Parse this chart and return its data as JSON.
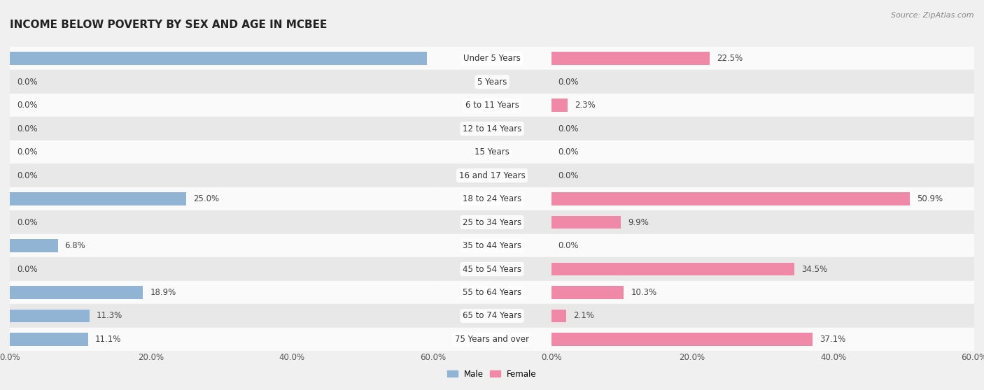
{
  "title": "INCOME BELOW POVERTY BY SEX AND AGE IN MCBEE",
  "source": "Source: ZipAtlas.com",
  "categories": [
    "Under 5 Years",
    "5 Years",
    "6 to 11 Years",
    "12 to 14 Years",
    "15 Years",
    "16 and 17 Years",
    "18 to 24 Years",
    "25 to 34 Years",
    "35 to 44 Years",
    "45 to 54 Years",
    "55 to 64 Years",
    "65 to 74 Years",
    "75 Years and over"
  ],
  "male": [
    59.2,
    0.0,
    0.0,
    0.0,
    0.0,
    0.0,
    25.0,
    0.0,
    6.8,
    0.0,
    18.9,
    11.3,
    11.1
  ],
  "female": [
    22.5,
    0.0,
    2.3,
    0.0,
    0.0,
    0.0,
    50.9,
    9.9,
    0.0,
    34.5,
    10.3,
    2.1,
    37.1
  ],
  "male_color": "#92b4d4",
  "female_color": "#f088a8",
  "male_label": "Male",
  "female_label": "Female",
  "xlim": 60.0,
  "background_color": "#f0f0f0",
  "row_bg_light": "#fafafa",
  "row_bg_dark": "#e8e8e8",
  "title_fontsize": 11,
  "label_fontsize": 8.5,
  "tick_fontsize": 8.5,
  "source_fontsize": 8,
  "bar_height": 0.55
}
